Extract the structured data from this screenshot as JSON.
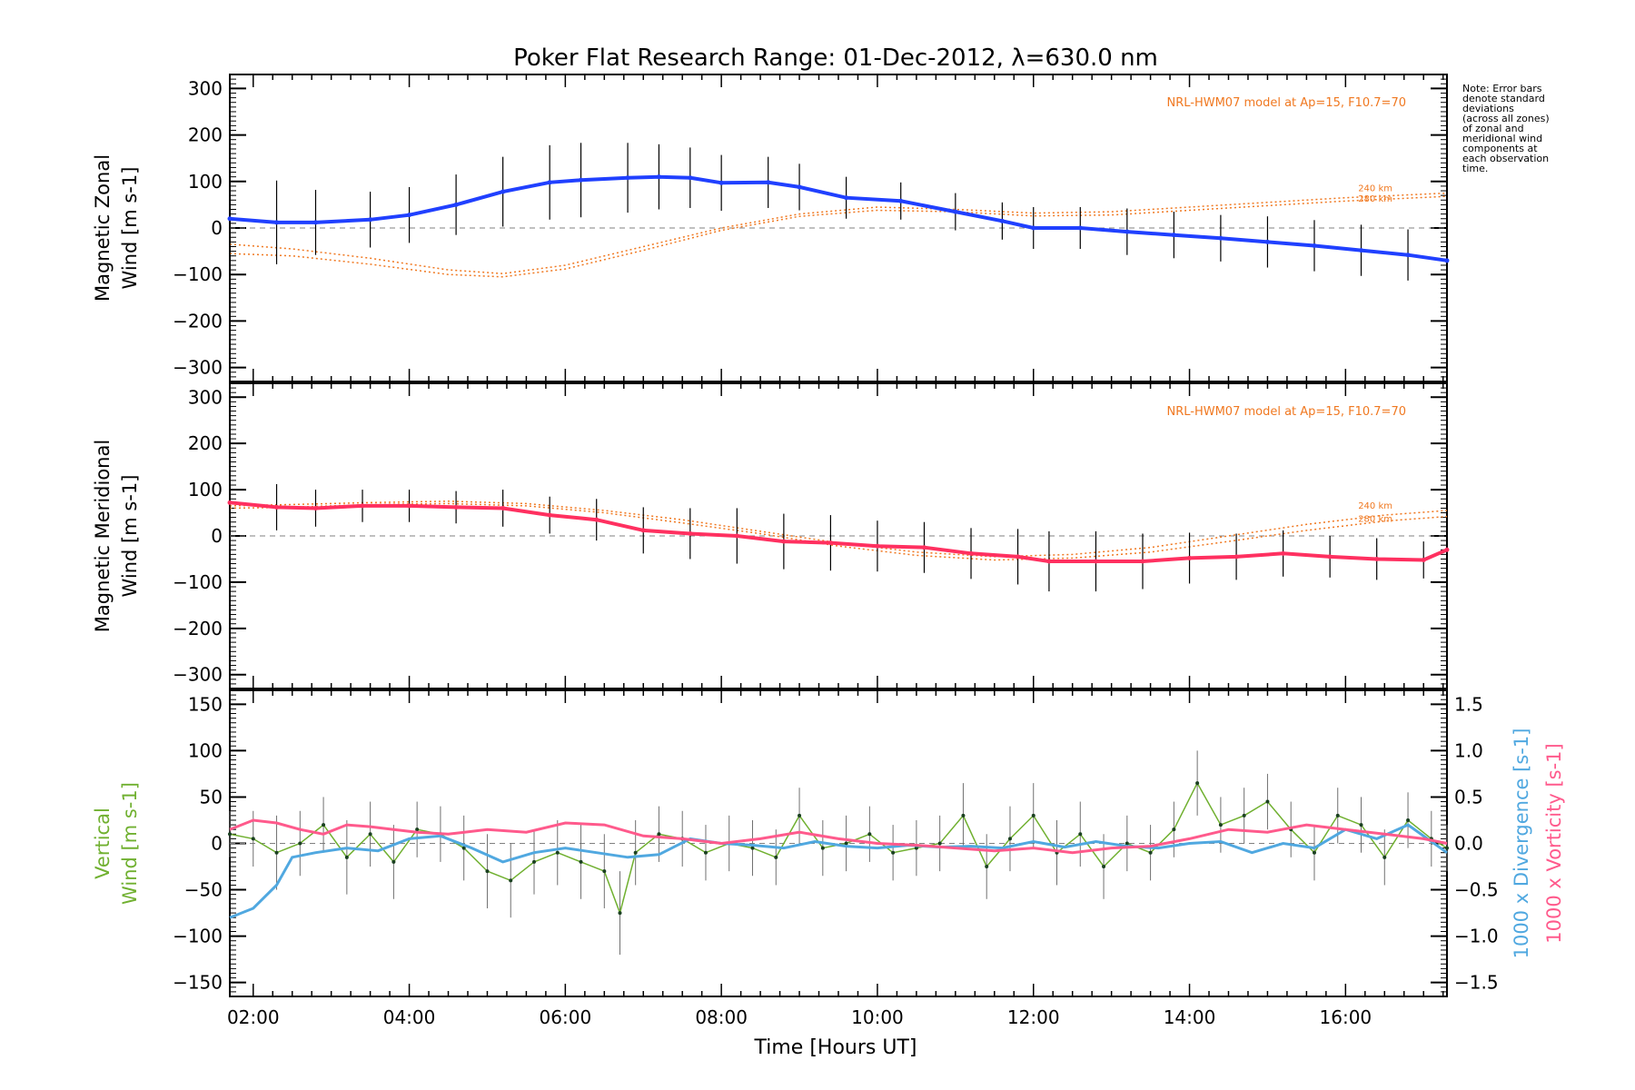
{
  "title": "Poker Flat Research Range: 01-Dec-2012, λ=630.0 nm",
  "xlabel": "Time [Hours UT]",
  "note_lines": [
    "Note: Error bars",
    "denote standard",
    "deviations",
    "(across all zones)",
    "of zonal and",
    "meridional wind",
    "components at",
    "each observation",
    "time."
  ],
  "colors": {
    "zonal": "#2040ff",
    "meridional": "#ff3060",
    "vertical": "#70b030",
    "divergence": "#50a8e0",
    "vorticity": "#ff5a8c",
    "model": "#f07820",
    "error_bar": "#000000",
    "zero_line": "#808080"
  },
  "chart_data": [
    {
      "type": "line",
      "name": "zonal",
      "ylabel_lines": [
        "Magnetic Zonal",
        "Wind [m s-1]"
      ],
      "xlim": [
        1.7,
        17.3
      ],
      "ylim": [
        -330,
        330
      ],
      "xticks": [
        "02:00",
        "04:00",
        "06:00",
        "08:00",
        "10:00",
        "12:00",
        "14:00",
        "16:00"
      ],
      "yticks": [
        -300,
        -200,
        -100,
        0,
        100,
        200,
        300
      ],
      "model_label": "NRL-HWM07 model at Ap=15, F10.7=70",
      "model_alt_labels": [
        "240 km",
        "280 km"
      ],
      "x": [
        1.7,
        2.3,
        2.8,
        3.5,
        4.0,
        4.6,
        5.2,
        5.8,
        6.2,
        6.8,
        7.2,
        7.6,
        8.0,
        8.6,
        9.0,
        9.6,
        10.3,
        11.0,
        11.6,
        12.0,
        12.6,
        13.2,
        13.8,
        14.4,
        15.0,
        15.6,
        16.2,
        16.8,
        17.3
      ],
      "y": [
        20,
        12,
        12,
        18,
        28,
        50,
        78,
        98,
        103,
        108,
        110,
        108,
        97,
        98,
        88,
        65,
        58,
        35,
        15,
        0,
        0,
        -8,
        -15,
        -22,
        -30,
        -38,
        -48,
        -58,
        -70
      ],
      "err": [
        90,
        90,
        70,
        60,
        60,
        65,
        75,
        80,
        80,
        75,
        70,
        65,
        60,
        55,
        50,
        45,
        40,
        40,
        40,
        45,
        45,
        50,
        50,
        50,
        55,
        55,
        55,
        55,
        60
      ],
      "model_x": [
        1.7,
        2.5,
        3.5,
        4.5,
        5.2,
        6.0,
        7.0,
        8.0,
        9.0,
        10.0,
        11.0,
        12.0,
        13.0,
        14.0,
        15.0,
        16.0,
        17.3
      ],
      "model_240": [
        -35,
        -45,
        -65,
        -90,
        -98,
        -80,
        -40,
        0,
        30,
        45,
        40,
        32,
        35,
        45,
        55,
        65,
        75
      ],
      "model_280": [
        -55,
        -60,
        -78,
        -100,
        -105,
        -88,
        -48,
        -5,
        25,
        38,
        35,
        26,
        28,
        38,
        48,
        58,
        68
      ]
    },
    {
      "type": "line",
      "name": "meridional",
      "ylabel_lines": [
        "Magnetic Meridional",
        "Wind [m s-1]"
      ],
      "xlim": [
        1.7,
        17.3
      ],
      "ylim": [
        -330,
        330
      ],
      "xticks": [
        "02:00",
        "04:00",
        "06:00",
        "08:00",
        "10:00",
        "12:00",
        "14:00",
        "16:00"
      ],
      "yticks": [
        -300,
        -200,
        -100,
        0,
        100,
        200,
        300
      ],
      "model_label": "NRL-HWM07 model at Ap=15, F10.7=70",
      "model_alt_labels": [
        "240 km",
        "280 km"
      ],
      "x": [
        1.7,
        2.3,
        2.8,
        3.4,
        4.0,
        4.6,
        5.2,
        5.8,
        6.4,
        7.0,
        7.6,
        8.2,
        8.8,
        9.4,
        10.0,
        10.6,
        11.2,
        11.8,
        12.2,
        12.8,
        13.4,
        14.0,
        14.6,
        15.2,
        15.8,
        16.4,
        17.0,
        17.3
      ],
      "y": [
        72,
        62,
        60,
        65,
        65,
        62,
        60,
        45,
        35,
        12,
        5,
        0,
        -12,
        -15,
        -22,
        -25,
        -38,
        -45,
        -55,
        -55,
        -55,
        -48,
        -45,
        -38,
        -45,
        -50,
        -52,
        -30
      ],
      "err": [
        70,
        50,
        40,
        35,
        35,
        35,
        40,
        40,
        45,
        50,
        55,
        60,
        60,
        60,
        55,
        55,
        55,
        60,
        65,
        65,
        60,
        55,
        50,
        50,
        45,
        45,
        40,
        40
      ],
      "model_x": [
        1.7,
        2.5,
        3.5,
        4.5,
        5.5,
        6.5,
        7.5,
        8.5,
        9.5,
        10.5,
        11.5,
        12.5,
        13.5,
        14.5,
        15.5,
        16.5,
        17.3
      ],
      "model_240": [
        65,
        68,
        72,
        75,
        70,
        55,
        35,
        10,
        -15,
        -35,
        -45,
        -40,
        -25,
        0,
        25,
        45,
        55
      ],
      "model_280": [
        60,
        62,
        68,
        70,
        65,
        50,
        28,
        5,
        -22,
        -42,
        -52,
        -48,
        -35,
        -12,
        12,
        32,
        42
      ]
    },
    {
      "type": "line",
      "name": "vertical",
      "ylabel_lines": [
        "Vertical",
        "Wind [m s-1]"
      ],
      "right_label_divergence": "1000 x Divergence [s-1]",
      "right_label_vorticity": "1000 x Vorticity [s-1]",
      "xlim": [
        1.7,
        17.3
      ],
      "ylim": [
        -165,
        165
      ],
      "y2lim": [
        -1.65,
        1.65
      ],
      "xticks": [
        "02:00",
        "04:00",
        "06:00",
        "08:00",
        "10:00",
        "12:00",
        "14:00",
        "16:00"
      ],
      "yticks": [
        -150,
        -100,
        -50,
        0,
        50,
        100,
        150
      ],
      "y2ticks": [
        -1.5,
        -1.0,
        -0.5,
        0.0,
        0.5,
        1.0,
        1.5
      ],
      "x": [
        1.7,
        2.0,
        2.3,
        2.6,
        2.9,
        3.2,
        3.5,
        3.8,
        4.1,
        4.4,
        4.7,
        5.0,
        5.3,
        5.6,
        5.9,
        6.2,
        6.5,
        6.7,
        6.9,
        7.2,
        7.5,
        7.8,
        8.1,
        8.4,
        8.7,
        9.0,
        9.3,
        9.6,
        9.9,
        10.2,
        10.5,
        10.8,
        11.1,
        11.4,
        11.7,
        12.0,
        12.3,
        12.6,
        12.9,
        13.2,
        13.5,
        13.8,
        14.1,
        14.4,
        14.7,
        15.0,
        15.3,
        15.6,
        15.9,
        16.2,
        16.5,
        16.8,
        17.1,
        17.3
      ],
      "y": [
        10,
        5,
        -10,
        0,
        20,
        -15,
        10,
        -20,
        15,
        10,
        -5,
        -30,
        -40,
        -20,
        -10,
        -20,
        -30,
        -75,
        -10,
        10,
        5,
        -10,
        0,
        -5,
        -15,
        30,
        -5,
        0,
        10,
        -10,
        -5,
        0,
        30,
        -25,
        5,
        30,
        -10,
        10,
        -25,
        0,
        -10,
        15,
        65,
        20,
        30,
        45,
        15,
        -10,
        30,
        20,
        -15,
        25,
        5,
        -5
      ],
      "err": [
        25,
        30,
        40,
        35,
        30,
        40,
        35,
        40,
        30,
        30,
        35,
        40,
        40,
        35,
        35,
        40,
        40,
        45,
        35,
        30,
        30,
        30,
        30,
        30,
        30,
        30,
        30,
        30,
        30,
        30,
        30,
        30,
        35,
        35,
        35,
        35,
        35,
        35,
        35,
        30,
        30,
        30,
        35,
        30,
        30,
        30,
        30,
        30,
        30,
        30,
        30,
        30,
        30,
        25
      ],
      "divergence_x": [
        1.7,
        2.0,
        2.3,
        2.5,
        2.8,
        3.2,
        3.6,
        4.0,
        4.4,
        4.8,
        5.2,
        5.6,
        6.0,
        6.4,
        6.8,
        7.2,
        7.6,
        8.0,
        8.4,
        8.8,
        9.2,
        9.6,
        10.0,
        10.4,
        10.8,
        11.2,
        11.6,
        12.0,
        12.4,
        12.8,
        13.2,
        13.6,
        14.0,
        14.4,
        14.8,
        15.2,
        15.6,
        16.0,
        16.4,
        16.8,
        17.3
      ],
      "divergence": [
        -0.8,
        -0.7,
        -0.45,
        -0.15,
        -0.1,
        -0.05,
        -0.08,
        0.05,
        0.08,
        -0.05,
        -0.2,
        -0.1,
        -0.05,
        -0.1,
        -0.15,
        -0.12,
        0.05,
        0.0,
        -0.02,
        -0.05,
        0.02,
        -0.03,
        -0.05,
        -0.02,
        -0.04,
        -0.03,
        -0.05,
        0.02,
        -0.04,
        0.02,
        -0.03,
        -0.05,
        0.0,
        0.02,
        -0.1,
        0.0,
        -0.05,
        0.15,
        0.05,
        0.2,
        -0.1
      ],
      "vorticity_x": [
        1.7,
        2.0,
        2.3,
        2.6,
        2.9,
        3.2,
        3.5,
        3.8,
        4.1,
        4.5,
        5.0,
        5.5,
        6.0,
        6.5,
        7.0,
        7.5,
        8.0,
        8.5,
        9.0,
        9.5,
        10.0,
        10.5,
        11.0,
        11.5,
        12.0,
        12.5,
        13.0,
        13.5,
        14.0,
        14.5,
        15.0,
        15.5,
        16.0,
        16.5,
        17.0,
        17.3
      ],
      "vorticity": [
        0.15,
        0.25,
        0.22,
        0.15,
        0.1,
        0.2,
        0.18,
        0.15,
        0.12,
        0.1,
        0.15,
        0.12,
        0.22,
        0.2,
        0.08,
        0.05,
        0.0,
        0.05,
        0.12,
        0.05,
        0.0,
        -0.02,
        -0.05,
        -0.08,
        -0.05,
        -0.1,
        -0.05,
        -0.03,
        0.05,
        0.15,
        0.12,
        0.2,
        0.15,
        0.1,
        0.05,
        0.0
      ]
    }
  ]
}
